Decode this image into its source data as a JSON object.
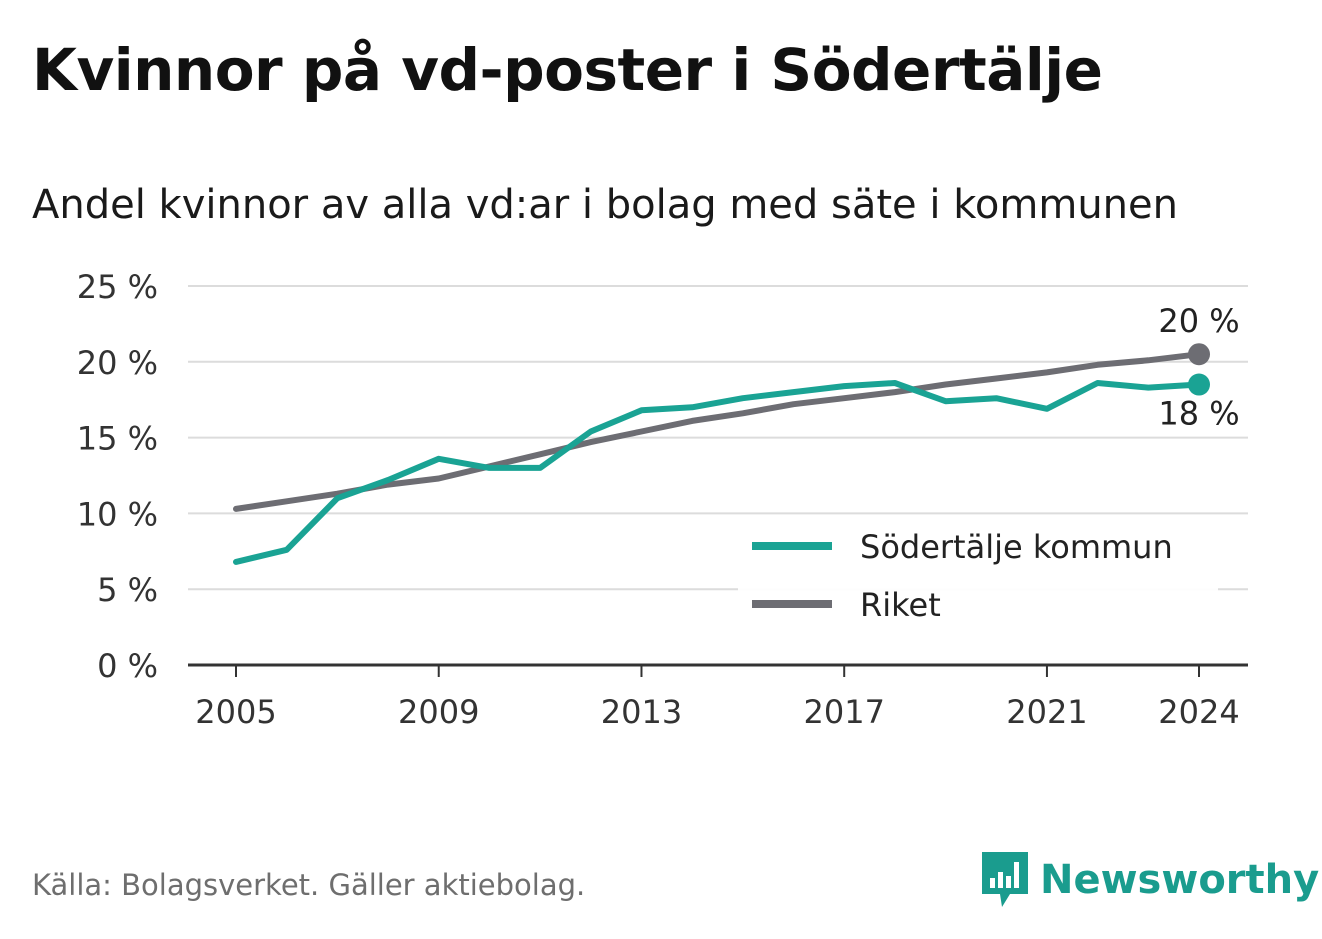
{
  "title": "Kvinnor på vd-poster i Södertälje",
  "subtitle": "Andel kvinnor av alla vd:ar i bolag med säte i kommunen",
  "source": "Källa: Bolagsverket. Gäller aktiebolag.",
  "brand": {
    "name": "Newsworthy",
    "icon": "newsworthy-logo-icon",
    "color": "#1a9c8e"
  },
  "chart_data": {
    "type": "line",
    "x": [
      2005,
      2006,
      2007,
      2008,
      2009,
      2010,
      2011,
      2012,
      2013,
      2014,
      2015,
      2016,
      2017,
      2018,
      2019,
      2020,
      2021,
      2022,
      2023,
      2024
    ],
    "xticks": [
      2005,
      2009,
      2013,
      2017,
      2021,
      2024
    ],
    "yticks": [
      0,
      5,
      10,
      15,
      20,
      25
    ],
    "ytick_labels": [
      "0 %",
      "5 %",
      "10 %",
      "15 %",
      "20 %",
      "25 %"
    ],
    "xlim": [
      2005,
      2024
    ],
    "ylim": [
      0,
      25
    ],
    "grid": true,
    "legend_position": "bottom-right",
    "series": [
      {
        "name": "Södertälje kommun",
        "color": "#1aa394",
        "values": [
          6.8,
          7.6,
          11.0,
          12.2,
          13.6,
          13.0,
          13.0,
          15.4,
          16.8,
          17.0,
          17.6,
          18.0,
          18.4,
          18.6,
          17.4,
          17.6,
          16.9,
          18.6,
          18.3,
          18.5
        ],
        "end_label": "18 %"
      },
      {
        "name": "Riket",
        "color": "#6d6d73",
        "values": [
          10.3,
          10.8,
          11.3,
          11.9,
          12.3,
          13.1,
          13.9,
          14.7,
          15.4,
          16.1,
          16.6,
          17.2,
          17.6,
          18.0,
          18.5,
          18.9,
          19.3,
          19.8,
          20.1,
          20.5
        ],
        "end_label": "20 %"
      }
    ]
  }
}
